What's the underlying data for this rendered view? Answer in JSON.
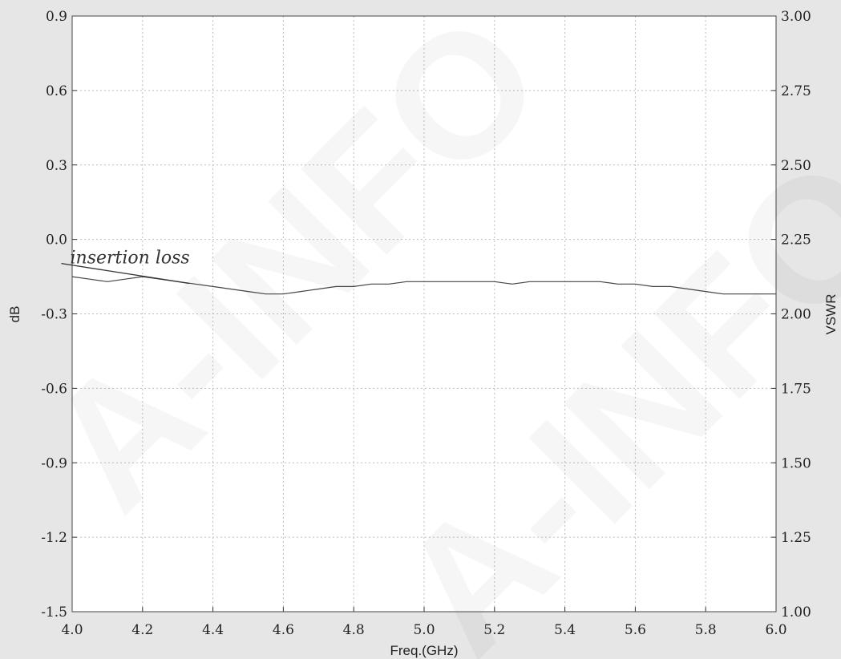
{
  "chart_data": {
    "type": "line",
    "title": "",
    "xlabel": "Freq.(GHz)",
    "ylabel": "dB",
    "y2label": "VSWR",
    "xlim": [
      4.0,
      6.0
    ],
    "ylim": [
      -1.5,
      0.9
    ],
    "y2lim": [
      1.0,
      3.0
    ],
    "x_ticks": [
      "4.0",
      "4.2",
      "4.4",
      "4.6",
      "4.8",
      "5.0",
      "5.2",
      "5.4",
      "5.6",
      "5.8",
      "6.0"
    ],
    "y_ticks": [
      "0.9",
      "0.6",
      "0.3",
      "0.0",
      "-0.3",
      "-0.6",
      "-0.9",
      "-1.2",
      "-1.5"
    ],
    "y2_ticks": [
      "3.00",
      "2.75",
      "2.50",
      "2.25",
      "2.00",
      "1.75",
      "1.50",
      "1.25",
      "1.00"
    ],
    "grid": true,
    "series": [
      {
        "name": "insertion loss",
        "axis": "left",
        "color": "#444444",
        "x": [
          4.0,
          4.05,
          4.1,
          4.15,
          4.2,
          4.25,
          4.3,
          4.35,
          4.4,
          4.45,
          4.5,
          4.55,
          4.6,
          4.65,
          4.7,
          4.75,
          4.8,
          4.85,
          4.9,
          4.95,
          5.0,
          5.05,
          5.1,
          5.15,
          5.2,
          5.25,
          5.3,
          5.35,
          5.4,
          5.45,
          5.5,
          5.55,
          5.6,
          5.65,
          5.7,
          5.75,
          5.8,
          5.85,
          5.9,
          5.95,
          6.0
        ],
        "values": [
          -0.15,
          -0.16,
          -0.17,
          -0.16,
          -0.15,
          -0.16,
          -0.17,
          -0.18,
          -0.19,
          -0.2,
          -0.21,
          -0.22,
          -0.22,
          -0.21,
          -0.2,
          -0.19,
          -0.19,
          -0.18,
          -0.18,
          -0.17,
          -0.17,
          -0.17,
          -0.17,
          -0.17,
          -0.17,
          -0.18,
          -0.17,
          -0.17,
          -0.17,
          -0.17,
          -0.17,
          -0.18,
          -0.18,
          -0.19,
          -0.19,
          -0.2,
          -0.21,
          -0.22,
          -0.22,
          -0.22,
          -0.22
        ]
      }
    ],
    "annotations": [
      {
        "text": "insertion loss",
        "x": 4.5,
        "y": 0.0,
        "points_to": [
          4.35,
          -0.19
        ]
      }
    ]
  },
  "watermarks": [
    "A-INFO",
    "A-INFO"
  ]
}
